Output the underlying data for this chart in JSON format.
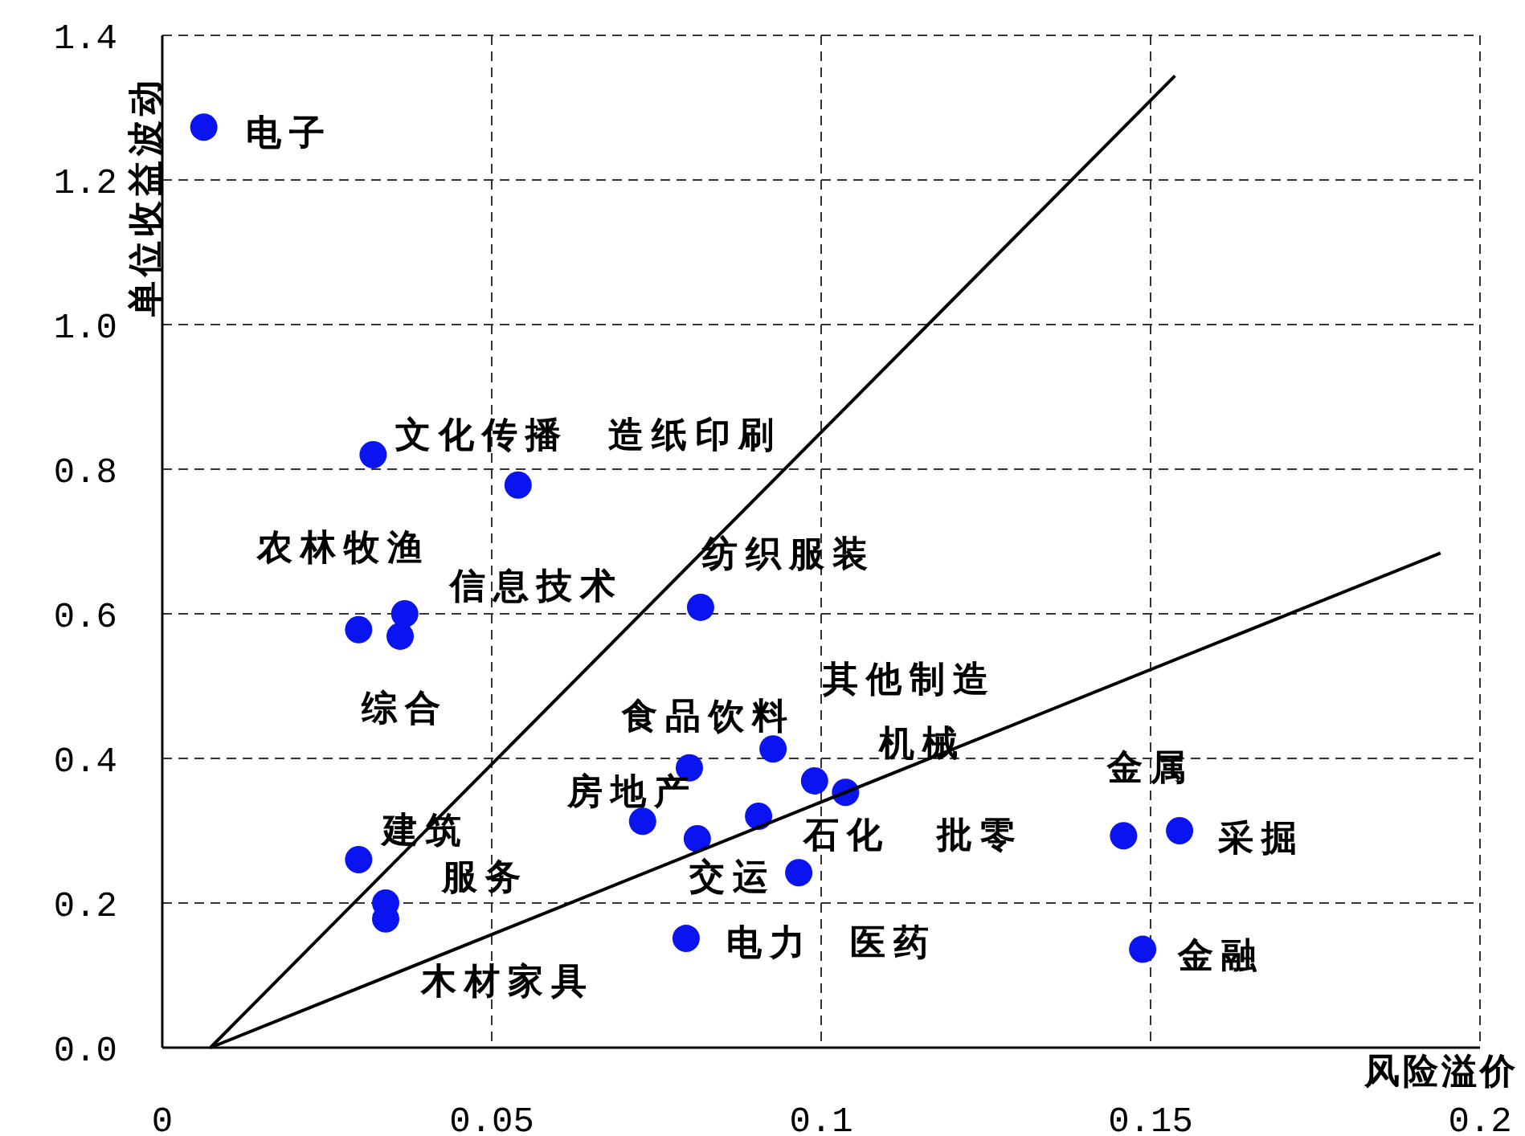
{
  "chart_data": {
    "type": "scatter",
    "xlabel": "风险溢价",
    "ylabel": "单位收益波动",
    "xlim": [
      0,
      0.2
    ],
    "ylim": [
      0,
      1.4
    ],
    "xticks": [
      0,
      0.05,
      0.1,
      0.15,
      0.2
    ],
    "yticks": [
      {
        "value": 0,
        "label": "0.0"
      },
      {
        "value": 0.2,
        "label": "0.2"
      },
      {
        "value": 0.4,
        "label": "0.4"
      },
      {
        "value": 0.6,
        "label": "0.6"
      },
      {
        "value": 0.8,
        "label": "0.8"
      },
      {
        "value": 1.0,
        "label": "1.0"
      },
      {
        "value": 1.2,
        "label": "1.2"
      },
      {
        "value": 1.4,
        "label": "1.4"
      }
    ],
    "grid": true,
    "series": [
      {
        "marker": "circle",
        "color": "#0a14f0",
        "x": [
          0.0063,
          0.032,
          0.054,
          0.0298,
          0.0368,
          0.0817,
          0.0361,
          0.0927,
          0.08,
          0.099,
          0.1459,
          0.0729,
          0.1544,
          0.1037,
          0.0905,
          0.0298,
          0.0966,
          0.0339,
          0.0795,
          0.0812,
          0.1488,
          0.0339
        ],
        "values": [
          1.273,
          0.82,
          0.778,
          0.578,
          0.6,
          0.609,
          0.569,
          0.413,
          0.387,
          0.369,
          0.293,
          0.313,
          0.3,
          0.353,
          0.32,
          0.26,
          0.242,
          0.2,
          0.151,
          0.289,
          0.136,
          0.178
        ]
      },
      {
        "type": "line",
        "color": "#000000",
        "x": [
          0.0073,
          0.1537
        ],
        "values": [
          0,
          1.344
        ]
      },
      {
        "type": "line",
        "color": "#000000",
        "x": [
          0.0073,
          0.194
        ],
        "values": [
          0,
          0.684
        ]
      }
    ],
    "annotations": [
      {
        "text": "电子",
        "x": 0.0063,
        "y": 1.273
      },
      {
        "text": "文化传播",
        "x": 0.032,
        "y": 0.82
      },
      {
        "text": "造纸印刷",
        "x": 0.054,
        "y": 0.778
      },
      {
        "text": "农林牧渔",
        "x": 0.0298,
        "y": 0.578
      },
      {
        "text": "信息技术",
        "x": 0.0368,
        "y": 0.6
      },
      {
        "text": "纺织服装",
        "x": 0.0817,
        "y": 0.609
      },
      {
        "text": "综合",
        "x": 0.0361,
        "y": 0.569
      },
      {
        "text": "其他制造",
        "x": 0.0927,
        "y": 0.413
      },
      {
        "text": "食品饮料",
        "x": 0.08,
        "y": 0.387
      },
      {
        "text": "机械",
        "x": 0.099,
        "y": 0.369
      },
      {
        "text": "金属",
        "x": 0.1459,
        "y": 0.293
      },
      {
        "text": "房地产",
        "x": 0.0729,
        "y": 0.313
      },
      {
        "text": "采掘",
        "x": 0.1544,
        "y": 0.3
      },
      {
        "text": "石化",
        "x": 0.0905,
        "y": 0.32
      },
      {
        "text": "批零",
        "x": 0.1037,
        "y": 0.353
      },
      {
        "text": "建筑",
        "x": 0.0298,
        "y": 0.26
      },
      {
        "text": "交运",
        "x": 0.0966,
        "y": 0.242
      },
      {
        "text": "服务",
        "x": 0.0339,
        "y": 0.2
      },
      {
        "text": "电力",
        "x": 0.0795,
        "y": 0.151
      },
      "医药",
      {
        "text": "金融",
        "x": 0.1488,
        "y": 0.136
      },
      {
        "text": "木材家具",
        "x": 0.0339,
        "y": 0.178
      }
    ]
  }
}
